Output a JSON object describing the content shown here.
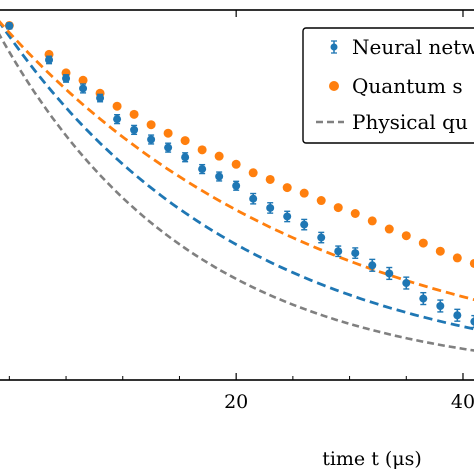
{
  "chart_data": {
    "type": "line",
    "xlabel": "time t (μs)",
    "x_ticks": [
      20,
      40
    ],
    "x_tick_labels": [
      "20",
      "40"
    ],
    "xlim": [
      -1.0,
      41.5
    ],
    "ylim": [
      0.0,
      1.0
    ],
    "legend": {
      "placement": "top-right",
      "entries": [
        "Neural netw",
        "Quantum s",
        "Physical qu"
      ]
    },
    "colors": {
      "neural": "#1f77b4",
      "quantum": "#ff7f0e",
      "physical": "#808080"
    },
    "series": [
      {
        "name": "Neural netw",
        "style": "points with error bars and dashed fit line",
        "x": [
          0,
          3.5,
          5.0,
          6.5,
          8.0,
          9.5,
          11.0,
          12.5,
          14.0,
          15.5,
          17.0,
          18.5,
          20.0,
          21.5,
          23.0,
          24.5,
          26.0,
          27.5,
          29.0,
          30.5,
          32.0,
          33.5,
          35.0,
          36.5,
          38.0,
          39.5,
          41.0
        ],
        "y": [
          0.957,
          0.865,
          0.815,
          0.788,
          0.762,
          0.705,
          0.676,
          0.65,
          0.628,
          0.602,
          0.57,
          0.55,
          0.525,
          0.49,
          0.465,
          0.442,
          0.42,
          0.385,
          0.348,
          0.343,
          0.31,
          0.288,
          0.262,
          0.22,
          0.2,
          0.175,
          0.158
        ],
        "error": [
          0.008,
          0.01,
          0.01,
          0.012,
          0.01,
          0.012,
          0.012,
          0.012,
          0.012,
          0.012,
          0.012,
          0.012,
          0.012,
          0.014,
          0.014,
          0.014,
          0.014,
          0.014,
          0.014,
          0.014,
          0.016,
          0.016,
          0.016,
          0.016,
          0.016,
          0.016,
          0.016
        ],
        "fit_x": [
          -1.0,
          41.5
        ],
        "fit_y": [
          0.973,
          0.14
        ],
        "fit_tau": 21.5
      },
      {
        "name": "Quantum s",
        "style": "points with dashed fit line",
        "x": [
          0,
          3.5,
          5.0,
          6.5,
          8.0,
          9.5,
          11.0,
          12.5,
          14.0,
          15.5,
          17.0,
          18.5,
          20.0,
          21.5,
          23.0,
          24.5,
          26.0,
          27.5,
          29.0,
          30.5,
          32.0,
          33.5,
          35.0,
          36.5,
          38.0,
          39.5,
          41.0
        ],
        "y": [
          0.958,
          0.88,
          0.83,
          0.81,
          0.775,
          0.74,
          0.718,
          0.69,
          0.667,
          0.647,
          0.622,
          0.605,
          0.583,
          0.56,
          0.542,
          0.52,
          0.505,
          0.485,
          0.466,
          0.45,
          0.43,
          0.408,
          0.39,
          0.37,
          0.348,
          0.33,
          0.315
        ],
        "fit_x": [
          -1.0,
          41.5
        ],
        "fit_y": [
          0.973,
          0.29
        ],
        "fit_tau": 28.0
      },
      {
        "name": "Physical qu",
        "style": "dashed line",
        "x": [
          -1.0,
          41.5
        ],
        "y": [
          0.94,
          0.08
        ],
        "tau": 17.0
      }
    ]
  }
}
